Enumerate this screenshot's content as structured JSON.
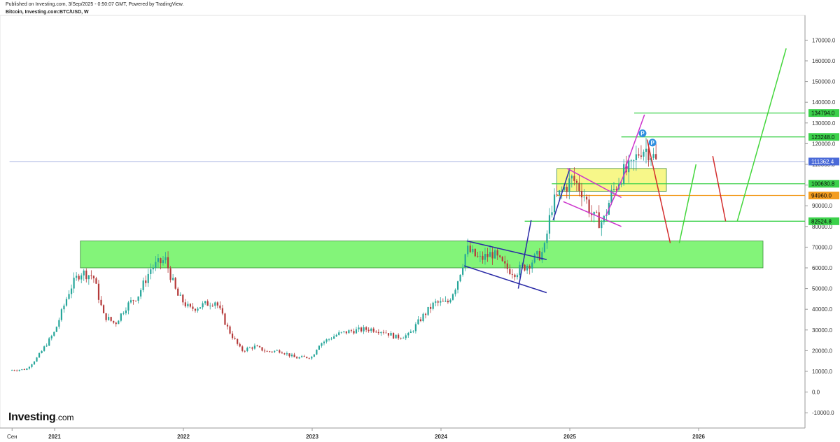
{
  "header": {
    "published": "Published on Investing.com, 3/Sep/2025 - 0:50:07 GMT, Powered by TradingView.",
    "symbol": "Bitcoin, Investing.com:BTC/USD, W"
  },
  "logo": {
    "main": "Investing",
    "suffix": ".com"
  },
  "colors": {
    "bull": "#26a69a",
    "bear": "#b53a3a",
    "zone": "#76f36a",
    "box": "#f6f674",
    "level_green": "#3bd14a",
    "level_orange": "#f39c1f",
    "projection_green": "#43d63b",
    "projection_red": "#d32d2d",
    "channel_navy": "#2a2aa6",
    "channel_magenta": "#cc33cc"
  },
  "chart_data": {
    "type": "candlestick",
    "title": "Bitcoin, Investing.com:BTC/USD, W",
    "ylim": [
      -15000,
      180000
    ],
    "y_ticks": [
      -10000,
      0,
      10000,
      20000,
      30000,
      40000,
      50000,
      60000,
      70000,
      80000,
      90000,
      100000,
      110000,
      120000,
      130000,
      140000,
      150000,
      160000,
      170000
    ],
    "y_tick_labels": [
      "-10000.0",
      "0.0",
      "10000.0",
      "20000.0",
      "30000.0",
      "40000.0",
      "50000.0",
      "60000.0",
      "70000.0",
      "80000.0",
      "90000.0",
      "100000.0",
      "110000.0",
      "120000.0",
      "130000.0",
      "140000.0",
      "150000.0",
      "160000.0",
      "170000.0"
    ],
    "x_ticks": [
      {
        "label": "Сен",
        "t": 2020.67
      },
      {
        "label": "2021",
        "t": 2021.0
      },
      {
        "label": "2022",
        "t": 2022.0
      },
      {
        "label": "2023",
        "t": 2023.0
      },
      {
        "label": "2024",
        "t": 2024.0
      },
      {
        "label": "2025",
        "t": 2025.0
      },
      {
        "label": "2026",
        "t": 2026.0
      }
    ],
    "path": [
      [
        2020.65,
        10500
      ],
      [
        2020.78,
        11000
      ],
      [
        2020.87,
        17000
      ],
      [
        2021.0,
        29000
      ],
      [
        2021.12,
        50000
      ],
      [
        2021.2,
        58000
      ],
      [
        2021.3,
        56000
      ],
      [
        2021.38,
        37000
      ],
      [
        2021.47,
        33000
      ],
      [
        2021.55,
        41000
      ],
      [
        2021.65,
        47000
      ],
      [
        2021.75,
        60000
      ],
      [
        2021.86,
        64000
      ],
      [
        2021.95,
        47000
      ],
      [
        2022.05,
        40000
      ],
      [
        2022.15,
        42000
      ],
      [
        2022.25,
        44000
      ],
      [
        2022.35,
        30000
      ],
      [
        2022.45,
        20000
      ],
      [
        2022.55,
        22000
      ],
      [
        2022.65,
        19500
      ],
      [
        2022.75,
        20000
      ],
      [
        2022.87,
        16500
      ],
      [
        2023.0,
        17000
      ],
      [
        2023.05,
        23000
      ],
      [
        2023.2,
        28000
      ],
      [
        2023.3,
        29500
      ],
      [
        2023.45,
        30500
      ],
      [
        2023.55,
        29500
      ],
      [
        2023.65,
        26500
      ],
      [
        2023.75,
        27500
      ],
      [
        2023.85,
        36000
      ],
      [
        2023.95,
        43000
      ],
      [
        2024.05,
        43000
      ],
      [
        2024.12,
        52000
      ],
      [
        2024.2,
        69000
      ],
      [
        2024.3,
        64000
      ],
      [
        2024.4,
        67000
      ],
      [
        2024.5,
        60000
      ],
      [
        2024.58,
        58000
      ],
      [
        2024.68,
        62000
      ],
      [
        2024.8,
        68000
      ],
      [
        2024.86,
        90000
      ],
      [
        2024.95,
        98000
      ],
      [
        2025.02,
        103000
      ],
      [
        2025.1,
        97000
      ],
      [
        2025.18,
        84000
      ],
      [
        2025.26,
        82000
      ],
      [
        2025.32,
        95000
      ],
      [
        2025.4,
        105000
      ],
      [
        2025.48,
        108000
      ],
      [
        2025.55,
        118000
      ],
      [
        2025.62,
        117000
      ],
      [
        2025.67,
        111000
      ]
    ],
    "zones": [
      {
        "t0": 2021.2,
        "t1": 2026.5,
        "y0": 60000,
        "y1": 73000,
        "color": "zone"
      },
      {
        "t0": 2024.9,
        "t1": 2025.75,
        "y0": 97000,
        "y1": 108000,
        "color": "box"
      }
    ],
    "levels": [
      {
        "value": 134794.0,
        "label": "134794.0",
        "t0": 2025.5,
        "color": "level_green"
      },
      {
        "value": 123248.0,
        "label": "123248.0",
        "t0": 2025.4,
        "color": "level_green"
      },
      {
        "value": 111362.4,
        "label": "111362.4",
        "t0": 2020.65,
        "color": "current"
      },
      {
        "value": 100630.8,
        "label": "100630.8",
        "t0": 2024.86,
        "color": "level_green"
      },
      {
        "value": 94960.0,
        "label": "94960.0",
        "t0": 2024.9,
        "color": "level_orange"
      },
      {
        "value": 82524.8,
        "label": "82524.8",
        "t0": 2024.65,
        "color": "level_green"
      }
    ],
    "trendlines": [
      {
        "points": [
          [
            2024.2,
            73000
          ],
          [
            2024.82,
            64000
          ]
        ],
        "color": "channel_navy"
      },
      {
        "points": [
          [
            2024.18,
            61000
          ],
          [
            2024.82,
            48000
          ]
        ],
        "color": "channel_navy"
      },
      {
        "points": [
          [
            2024.6,
            50000
          ],
          [
            2024.7,
            83000
          ]
        ],
        "color": "channel_navy"
      },
      {
        "points": [
          [
            2024.87,
            83000
          ],
          [
            2025.0,
            108000
          ]
        ],
        "color": "channel_navy"
      },
      {
        "points": [
          [
            2024.98,
            108000
          ],
          [
            2025.4,
            94000
          ]
        ],
        "color": "channel_magenta"
      },
      {
        "points": [
          [
            2024.95,
            92000
          ],
          [
            2025.4,
            80000
          ]
        ],
        "color": "channel_magenta"
      },
      {
        "points": [
          [
            2025.28,
            85000
          ],
          [
            2025.45,
            109000
          ]
        ],
        "color": "channel_magenta"
      },
      {
        "points": [
          [
            2025.43,
            108000
          ],
          [
            2025.58,
            134000
          ]
        ],
        "color": "channel_magenta"
      },
      {
        "points": [
          [
            2025.6,
            122000
          ],
          [
            2025.78,
            72000
          ]
        ],
        "color": "projection_red"
      },
      {
        "points": [
          [
            2025.85,
            72000
          ],
          [
            2025.98,
            110000
          ]
        ],
        "color": "projection_green"
      },
      {
        "points": [
          [
            2026.11,
            114000
          ],
          [
            2026.21,
            82500
          ]
        ],
        "color": "projection_red"
      },
      {
        "points": [
          [
            2026.3,
            82500
          ],
          [
            2026.68,
            166000
          ]
        ],
        "color": "projection_green"
      }
    ],
    "markers": [
      {
        "label": "P",
        "t": 2025.565,
        "value": 125000
      },
      {
        "label": "P",
        "t": 2025.642,
        "value": 120500
      }
    ]
  }
}
